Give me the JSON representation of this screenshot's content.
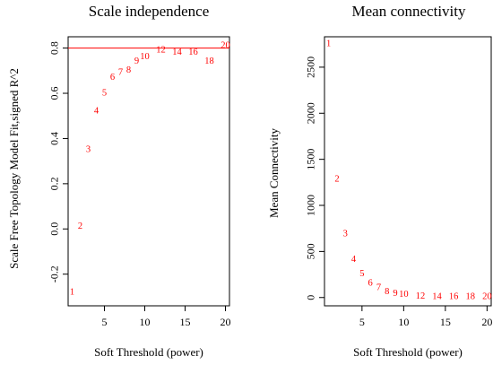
{
  "chart_data": [
    {
      "type": "scatter",
      "title": "Scale independence",
      "xlabel": "Soft Threshold (power)",
      "ylabel": "Scale Free Topology Model Fit,signed R^2",
      "xlim": [
        0.5,
        20.5
      ],
      "ylim": [
        -0.34,
        0.85
      ],
      "xticks": [
        5,
        10,
        15,
        20
      ],
      "yticks": [
        -0.2,
        0.0,
        0.2,
        0.4,
        0.6,
        0.8
      ],
      "ytick_labels": [
        "-0.2",
        "0.0",
        "0.2",
        "0.4",
        "0.6",
        "0.8"
      ],
      "labels": [
        "1",
        "2",
        "3",
        "4",
        "5",
        "6",
        "7",
        "8",
        "9",
        "10",
        "12",
        "14",
        "16",
        "18",
        "20"
      ],
      "x": [
        1,
        2,
        3,
        4,
        5,
        6,
        7,
        8,
        9,
        10,
        12,
        14,
        16,
        18,
        20
      ],
      "y": [
        -0.28,
        0.01,
        0.35,
        0.52,
        0.6,
        0.67,
        0.69,
        0.7,
        0.74,
        0.76,
        0.79,
        0.78,
        0.78,
        0.74,
        0.81
      ],
      "hline": 0.8,
      "point_color": "#ff0000",
      "hline_color": "#ff0000",
      "grid": false
    },
    {
      "type": "scatter",
      "title": "Mean connectivity",
      "xlabel": "Soft Threshold (power)",
      "ylabel": "Mean Connectivity",
      "xlim": [
        0.5,
        20.5
      ],
      "ylim": [
        -90,
        2830
      ],
      "xticks": [
        5,
        10,
        15,
        20
      ],
      "yticks": [
        0,
        500,
        1000,
        1500,
        2000,
        2500
      ],
      "ytick_labels": [
        "0",
        "500",
        "1000",
        "1500",
        "2000",
        "2500"
      ],
      "labels": [
        "1",
        "2",
        "3",
        "4",
        "5",
        "6",
        "7",
        "8",
        "9",
        "10",
        "12",
        "14",
        "16",
        "18",
        "20"
      ],
      "x": [
        1,
        2,
        3,
        4,
        5,
        6,
        7,
        8,
        9,
        10,
        12,
        14,
        16,
        18,
        20
      ],
      "y": [
        2750,
        1280,
        690,
        410,
        255,
        150,
        105,
        60,
        40,
        30,
        10,
        5,
        5,
        5,
        5
      ],
      "point_color": "#ff0000",
      "grid": false
    }
  ]
}
